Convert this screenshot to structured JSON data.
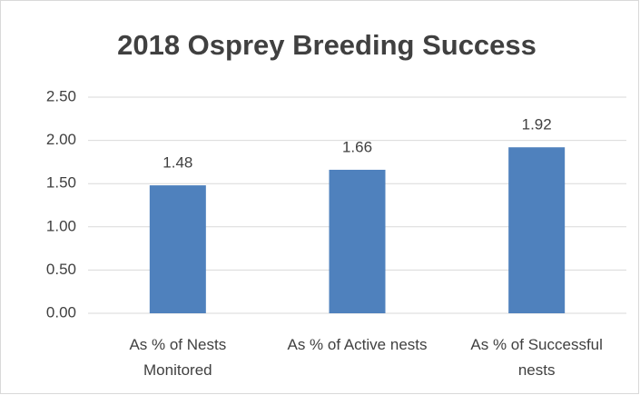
{
  "chart_data": {
    "type": "bar",
    "title": "2018 Osprey Breeding Success",
    "categories": [
      "As % of Nests Monitored",
      "As % of Active nests",
      "As % of Successful nests"
    ],
    "values": [
      1.48,
      1.66,
      1.92
    ],
    "color": "#4f81bd",
    "ylim": [
      0,
      2.5
    ],
    "yticks": [
      {
        "value": 0,
        "label": "0.00"
      },
      {
        "value": 0.5,
        "label": "0.50"
      },
      {
        "value": 1,
        "label": "1.00"
      },
      {
        "value": 1.5,
        "label": "1.50"
      },
      {
        "value": 2,
        "label": "2.00"
      },
      {
        "value": 2.5,
        "label": "2.50"
      }
    ],
    "grid": true
  }
}
